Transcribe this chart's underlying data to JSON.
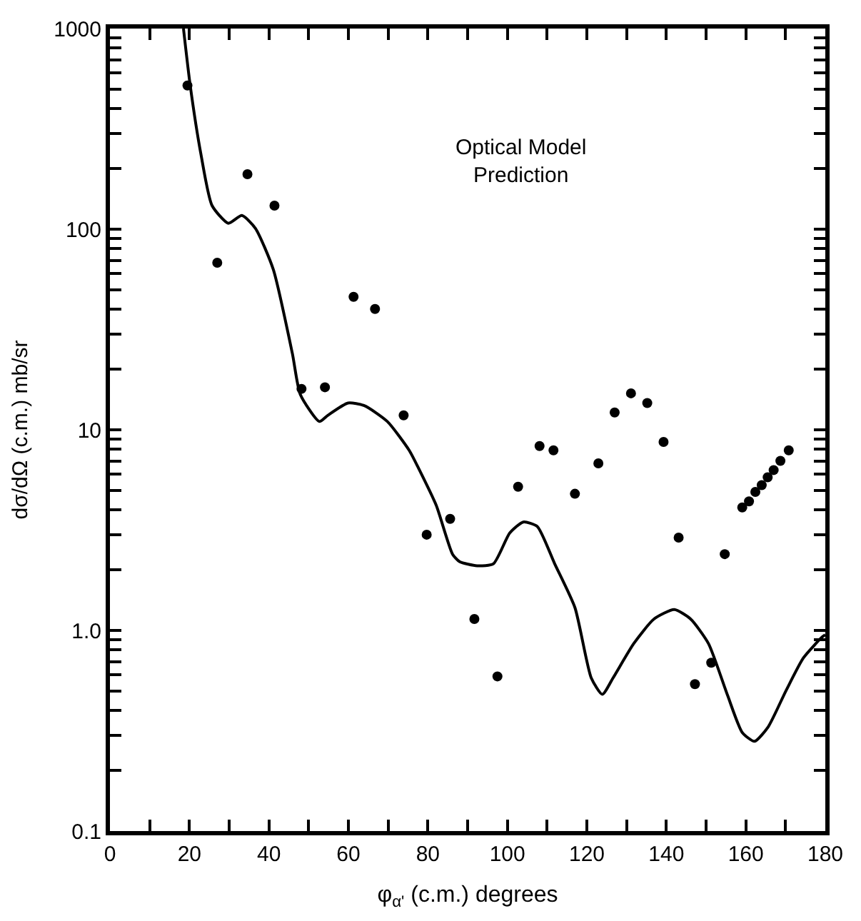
{
  "chart_data": {
    "type": "scatter",
    "xlabel": "φ$_{α'}$ (c.m.) degrees",
    "ylabel": "dσ/dΩ (c.m.) mb/sr",
    "annotations": [
      "Optical Model Prediction"
    ],
    "log": "y",
    "xlim": [
      0,
      180
    ],
    "xticks": [
      0,
      {
        "value": 10,
        "label": null
      },
      20,
      {
        "value": 30,
        "label": null
      },
      40,
      {
        "value": 50,
        "label": null
      },
      60,
      {
        "value": 70,
        "label": null
      },
      80,
      {
        "value": 90,
        "label": null
      },
      100,
      {
        "value": 110,
        "label": null
      },
      120,
      {
        "value": 130,
        "label": null
      },
      140,
      {
        "value": 150,
        "label": null
      },
      160,
      {
        "value": 170,
        "label": null
      },
      180
    ],
    "ylim": [
      0.1,
      1000
    ],
    "yticks": [
      {
        "value": 0.1,
        "label": "0.1"
      },
      {
        "value": 0.2,
        "label": null
      },
      {
        "value": 0.3,
        "label": null
      },
      {
        "value": 0.4,
        "label": null
      },
      {
        "value": 0.5,
        "label": null
      },
      {
        "value": 0.6,
        "label": null
      },
      {
        "value": 0.7,
        "label": null
      },
      {
        "value": 0.8,
        "label": null
      },
      {
        "value": 0.9,
        "label": null
      },
      {
        "value": 1,
        "label": "1.0"
      },
      {
        "value": 2,
        "label": null
      },
      {
        "value": 3,
        "label": null
      },
      {
        "value": 4,
        "label": null
      },
      {
        "value": 5,
        "label": null
      },
      {
        "value": 6,
        "label": null
      },
      {
        "value": 7,
        "label": null
      },
      {
        "value": 8,
        "label": null
      },
      {
        "value": 9,
        "label": null
      },
      10,
      {
        "value": 20,
        "label": null
      },
      {
        "value": 30,
        "label": null
      },
      {
        "value": 40,
        "label": null
      },
      {
        "value": 50,
        "label": null
      },
      {
        "value": 60,
        "label": null
      },
      {
        "value": 70,
        "label": null
      },
      {
        "value": 80,
        "label": null
      },
      {
        "value": 90,
        "label": null
      },
      100,
      {
        "value": 200,
        "label": null
      },
      {
        "value": 300,
        "label": null
      },
      {
        "value": 400,
        "label": null
      },
      {
        "value": 500,
        "label": null
      },
      {
        "value": 600,
        "label": null
      },
      {
        "value": 700,
        "label": null
      },
      {
        "value": 800,
        "label": null
      },
      {
        "value": 900,
        "label": null
      },
      1000
    ],
    "series": [
      {
        "marker": "circle",
        "color": "#000000",
        "x": [
          19.5,
          27,
          34.6,
          41.4,
          48.2,
          54.1,
          61.3,
          66.7,
          73.9,
          79.7,
          85.6,
          91.7,
          97.5,
          102.7,
          108.1,
          111.6,
          117,
          122.9,
          127,
          131.1,
          135.2,
          139.3,
          143.1,
          147.2,
          151.3,
          154.7,
          159.1,
          160.8,
          162.4,
          164,
          165.5,
          167,
          168.7,
          170.8
        ],
        "values": [
          520,
          68,
          188,
          131,
          16,
          16.3,
          46,
          40,
          11.8,
          3.0,
          3.6,
          1.14,
          0.59,
          5.2,
          8.3,
          7.9,
          4.8,
          6.8,
          12.2,
          15.2,
          13.6,
          8.7,
          2.9,
          0.54,
          0.69,
          2.4,
          4.1,
          4.4,
          4.9,
          5.3,
          5.8,
          6.3,
          7.0,
          7.9
        ]
      },
      {
        "type": "line",
        "marker": "none",
        "line_style": "solid",
        "color": "#000000",
        "x": [
          18.5,
          20.2,
          22.9,
          25.7,
          29.8,
          33.2,
          36.6,
          41.1,
          45.9,
          47.9,
          52.7,
          54.8,
          59.9,
          64,
          69.8,
          75.3,
          77.7,
          82.1,
          86.2,
          88,
          92.4,
          96.5,
          100.6,
          104,
          107.5,
          111.9,
          117,
          121.1,
          123.9,
          126.6,
          131.8,
          136.9,
          142,
          146.1,
          150.6,
          155.4,
          159.1,
          162.2,
          165.6,
          170.1,
          174.5,
          179.3,
          180
        ],
        "values": [
          1000,
          520,
          236,
          131,
          107,
          117,
          101,
          63,
          24,
          15,
          11,
          11.8,
          13.6,
          13.2,
          11,
          7.9,
          6.4,
          4.2,
          2.4,
          2.2,
          2.1,
          2.15,
          3.06,
          3.47,
          3.3,
          2.15,
          1.3,
          0.58,
          0.48,
          0.58,
          0.86,
          1.14,
          1.27,
          1.14,
          0.86,
          0.475,
          0.31,
          0.28,
          0.33,
          0.5,
          0.73,
          0.93,
          0.95
        ]
      }
    ]
  }
}
